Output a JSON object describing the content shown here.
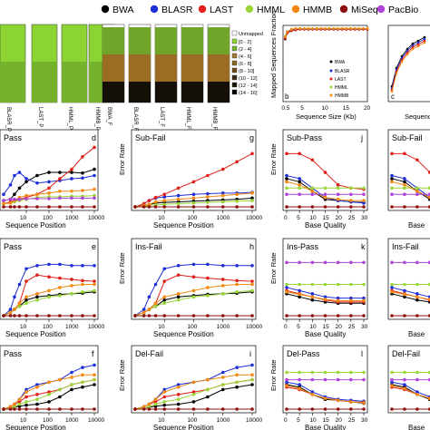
{
  "legend": {
    "items": [
      {
        "name": "BWA",
        "color": "#000000"
      },
      {
        "name": "BLASR",
        "color": "#1f2fd6"
      },
      {
        "name": "LAST",
        "color": "#e0201a"
      },
      {
        "name": "HMML",
        "color": "#9ad53a"
      },
      {
        "name": "HMMB",
        "color": "#f08a12"
      },
      {
        "name": "MiSeq",
        "color": "#8a1010"
      },
      {
        "name": "PacBio",
        "color": "#b044d8"
      }
    ]
  },
  "strip_legend": {
    "labels": [
      "Unmapped",
      "[0 - 2]",
      "(2 - 4]",
      "(4 - 6]",
      "(6 - 8]",
      "(8 - 10]",
      "(10 - 12]",
      "(12 - 14]",
      "(14 - 16]"
    ],
    "colors": [
      "#ffffff",
      "#8cd433",
      "#75b528",
      "#a0782e",
      "#8a6422",
      "#6a4a18",
      "#3a2a10",
      "#1a1208",
      "#000000"
    ]
  },
  "bar_labels": {
    "group1": [
      "BLASR_P",
      "LAST_P",
      "HMML_P",
      "HMMB_P"
    ],
    "group2": [
      "BWA_F",
      "BLASR_F",
      "LAST_F",
      "HMML_F",
      "HMMB_F"
    ]
  },
  "panel_b": {
    "letter": "b",
    "ylabel": "Mapped Sequences Fraction",
    "xlabel": "Sequence Size (Kb)",
    "xticks": [
      "0.5",
      "5",
      "10",
      "15",
      "20"
    ],
    "legend": [
      "BWA",
      "BLASR",
      "LAST",
      "HMML",
      "HMMB"
    ]
  },
  "panel_c": {
    "letter": "c",
    "xlabel": "Sequence"
  },
  "titles": {
    "d": "Pass",
    "g": "Sub-Fail",
    "j": "Sub-Pass",
    "m": "Sub-Fail",
    "e": "Pass",
    "h": "Ins-Fail",
    "k": "Ins-Pass",
    "n": "Ins-Fail",
    "f": "Pass",
    "i": "Del-Fail",
    "l": "Del-Pass",
    "o": "Del-Fail"
  },
  "letters": [
    "d",
    "e",
    "f",
    "g",
    "h",
    "i",
    "j",
    "k",
    "l"
  ],
  "axis_text": {
    "error_rate": "Error Rate",
    "seq_pos": "Sequence Position",
    "base_quality": "Base Quality",
    "base_q_short": "Base",
    "pos_ticks": [
      "10",
      "100",
      "1000",
      "10000"
    ],
    "pos_ticks_left": [
      "10",
      "100",
      "1000",
      "10000"
    ],
    "bq_ticks": [
      "0",
      "5",
      "10",
      "15",
      "20",
      "25",
      "30"
    ]
  },
  "chart_data": [
    {
      "type": "line",
      "panel": "b",
      "x": [
        0.5,
        1,
        2,
        3,
        4,
        5,
        6,
        7,
        8,
        9,
        10,
        11,
        12,
        13,
        14,
        15,
        16,
        17,
        18,
        19,
        20
      ],
      "series": [
        {
          "name": "BWA",
          "values": [
            0.82,
            0.9,
            0.93,
            0.94,
            0.95,
            0.95,
            0.95,
            0.95,
            0.95,
            0.95,
            0.95,
            0.95,
            0.95,
            0.95,
            0.95,
            0.95,
            0.95,
            0.95,
            0.95,
            0.95,
            0.95
          ]
        },
        {
          "name": "BLASR",
          "values": [
            0.84,
            0.91,
            0.94,
            0.95,
            0.95,
            0.95,
            0.95,
            0.95,
            0.95,
            0.95,
            0.95,
            0.95,
            0.95,
            0.95,
            0.95,
            0.95,
            0.95,
            0.95,
            0.95,
            0.95,
            0.95
          ]
        },
        {
          "name": "LAST",
          "values": [
            0.83,
            0.9,
            0.93,
            0.94,
            0.95,
            0.95,
            0.95,
            0.95,
            0.95,
            0.95,
            0.95,
            0.95,
            0.95,
            0.95,
            0.95,
            0.95,
            0.95,
            0.95,
            0.95,
            0.95,
            0.95
          ]
        },
        {
          "name": "HMML",
          "values": [
            0.86,
            0.92,
            0.95,
            0.96,
            0.96,
            0.96,
            0.96,
            0.96,
            0.96,
            0.96,
            0.96,
            0.96,
            0.96,
            0.96,
            0.96,
            0.96,
            0.96,
            0.96,
            0.96,
            0.96,
            0.96
          ]
        },
        {
          "name": "HMMB",
          "values": [
            0.85,
            0.92,
            0.95,
            0.96,
            0.96,
            0.96,
            0.96,
            0.96,
            0.96,
            0.96,
            0.96,
            0.96,
            0.96,
            0.96,
            0.96,
            0.96,
            0.96,
            0.96,
            0.96,
            0.96,
            0.96
          ]
        }
      ]
    },
    {
      "type": "line",
      "panel": "d",
      "x": [
        1,
        2,
        3,
        5,
        10,
        30,
        100,
        300,
        1000,
        3000,
        10000
      ],
      "series": [
        {
          "name": "BWA",
          "values": [
            0.1,
            0.12,
            0.2,
            0.3,
            0.4,
            0.5,
            0.55,
            0.55,
            0.55,
            0.54,
            0.6
          ]
        },
        {
          "name": "BLASR",
          "values": [
            0.2,
            0.35,
            0.5,
            0.55,
            0.45,
            0.38,
            0.4,
            0.42,
            0.45,
            0.46,
            0.5
          ]
        },
        {
          "name": "LAST",
          "values": [
            0.05,
            0.08,
            0.1,
            0.12,
            0.15,
            0.2,
            0.3,
            0.45,
            0.6,
            0.8,
            0.95
          ]
        },
        {
          "name": "HMML",
          "values": [
            0.05,
            0.06,
            0.08,
            0.1,
            0.12,
            0.15,
            0.16,
            0.16,
            0.17,
            0.17,
            0.18
          ]
        },
        {
          "name": "HMMB",
          "values": [
            0.05,
            0.06,
            0.1,
            0.15,
            0.18,
            0.2,
            0.22,
            0.25,
            0.25,
            0.26,
            0.28
          ]
        },
        {
          "name": "MiSeq",
          "values": [
            0,
            0,
            0,
            0,
            0,
            0,
            0,
            0,
            0,
            0,
            0
          ]
        },
        {
          "name": "PacBio",
          "values": [
            0.1,
            0.12,
            0.12,
            0.12,
            0.13,
            0.13,
            0.13,
            0.14,
            0.14,
            0.14,
            0.14
          ]
        }
      ]
    },
    {
      "type": "line",
      "panel": "g",
      "x": [
        1,
        2,
        3,
        5,
        10,
        30,
        100,
        300,
        1000,
        3000,
        10000
      ],
      "series": [
        {
          "name": "BWA",
          "values": [
            0,
            0.02,
            0.04,
            0.06,
            0.07,
            0.08,
            0.09,
            0.1,
            0.11,
            0.12,
            0.14
          ]
        },
        {
          "name": "BLASR",
          "values": [
            0,
            0.05,
            0.1,
            0.14,
            0.16,
            0.18,
            0.2,
            0.21,
            0.22,
            0.22,
            0.23
          ]
        },
        {
          "name": "LAST",
          "values": [
            0,
            0.05,
            0.1,
            0.15,
            0.2,
            0.3,
            0.4,
            0.5,
            0.6,
            0.72,
            0.85
          ]
        },
        {
          "name": "HMML",
          "values": [
            0,
            0.01,
            0.02,
            0.03,
            0.04,
            0.05,
            0.06,
            0.07,
            0.08,
            0.09,
            0.1
          ]
        },
        {
          "name": "HMMB",
          "values": [
            0,
            0.02,
            0.04,
            0.08,
            0.1,
            0.12,
            0.14,
            0.16,
            0.18,
            0.2,
            0.22
          ]
        },
        {
          "name": "MiSeq",
          "values": [
            0,
            0,
            0,
            0,
            0,
            0,
            0,
            0,
            0,
            0,
            0
          ]
        }
      ]
    },
    {
      "type": "line",
      "panel": "j",
      "x": [
        0,
        5,
        10,
        15,
        20,
        25,
        30
      ],
      "series": [
        {
          "name": "BWA",
          "values": [
            0.45,
            0.4,
            0.25,
            0.12,
            0.1,
            0.08,
            0.07
          ]
        },
        {
          "name": "BLASR",
          "values": [
            0.5,
            0.45,
            0.3,
            0.15,
            0.1,
            0.08,
            0.06
          ]
        },
        {
          "name": "LAST",
          "values": [
            0.85,
            0.85,
            0.75,
            0.55,
            0.35,
            0.3,
            0.28
          ]
        },
        {
          "name": "HMML",
          "values": [
            0.3,
            0.3,
            0.3,
            0.3,
            0.3,
            0.3,
            0.3
          ]
        },
        {
          "name": "HMMB",
          "values": [
            0.4,
            0.35,
            0.25,
            0.15,
            0.12,
            0.1,
            0.1
          ]
        },
        {
          "name": "MiSeq",
          "values": [
            0,
            0,
            0,
            0,
            0,
            0,
            0
          ]
        },
        {
          "name": "PacBio",
          "values": [
            0.2,
            0.2,
            0.2,
            0.2,
            0.2,
            0.2,
            0.2
          ]
        }
      ]
    },
    {
      "type": "line",
      "panel": "h",
      "x": [
        1,
        2,
        3,
        5,
        10,
        30,
        100,
        300,
        1000,
        3000,
        10000
      ],
      "series": [
        {
          "name": "BWA",
          "values": [
            0,
            0.05,
            0.1,
            0.15,
            0.25,
            0.3,
            0.32,
            0.34,
            0.35,
            0.36,
            0.38
          ]
        },
        {
          "name": "BLASR",
          "values": [
            0,
            0.1,
            0.3,
            0.5,
            0.75,
            0.8,
            0.82,
            0.82,
            0.8,
            0.8,
            0.8
          ]
        },
        {
          "name": "LAST",
          "values": [
            0,
            0.05,
            0.1,
            0.2,
            0.55,
            0.65,
            0.62,
            0.6,
            0.58,
            0.56,
            0.55
          ]
        },
        {
          "name": "HMML",
          "values": [
            0,
            0.05,
            0.1,
            0.15,
            0.2,
            0.25,
            0.3,
            0.32,
            0.35,
            0.38,
            0.4
          ]
        },
        {
          "name": "HMMB",
          "values": [
            0,
            0.05,
            0.1,
            0.2,
            0.3,
            0.35,
            0.4,
            0.45,
            0.48,
            0.5,
            0.5
          ]
        },
        {
          "name": "MiSeq",
          "values": [
            0,
            0,
            0,
            0,
            0,
            0,
            0,
            0,
            0,
            0,
            0
          ]
        }
      ]
    },
    {
      "type": "line",
      "panel": "k",
      "x": [
        0,
        5,
        10,
        15,
        20,
        25,
        30
      ],
      "series": [
        {
          "name": "BWA",
          "values": [
            0.35,
            0.3,
            0.25,
            0.22,
            0.2,
            0.2,
            0.2
          ]
        },
        {
          "name": "BLASR",
          "values": [
            0.45,
            0.4,
            0.35,
            0.3,
            0.28,
            0.28,
            0.28
          ]
        },
        {
          "name": "LAST",
          "values": [
            0.4,
            0.35,
            0.3,
            0.25,
            0.22,
            0.22,
            0.22
          ]
        },
        {
          "name": "HMML",
          "values": [
            0.5,
            0.5,
            0.5,
            0.5,
            0.5,
            0.5,
            0.5
          ]
        },
        {
          "name": "HMMB",
          "values": [
            0.38,
            0.34,
            0.3,
            0.26,
            0.24,
            0.24,
            0.24
          ]
        },
        {
          "name": "MiSeq",
          "values": [
            0,
            0,
            0,
            0,
            0,
            0,
            0
          ]
        },
        {
          "name": "PacBio",
          "values": [
            0.85,
            0.85,
            0.85,
            0.85,
            0.85,
            0.85,
            0.85
          ]
        }
      ]
    },
    {
      "type": "line",
      "panel": "i",
      "x": [
        1,
        2,
        3,
        5,
        10,
        30,
        100,
        300,
        1000,
        3000,
        10000
      ],
      "series": [
        {
          "name": "BWA",
          "values": [
            0,
            0.02,
            0.04,
            0.06,
            0.08,
            0.1,
            0.15,
            0.25,
            0.4,
            0.45,
            0.5
          ]
        },
        {
          "name": "BLASR",
          "values": [
            0,
            0.05,
            0.1,
            0.2,
            0.4,
            0.5,
            0.55,
            0.6,
            0.75,
            0.85,
            0.9
          ]
        },
        {
          "name": "LAST",
          "values": [
            0,
            0.05,
            0.1,
            0.15,
            0.25,
            0.3,
            0.35,
            0.4,
            0.5,
            0.55,
            0.6
          ]
        },
        {
          "name": "HMML",
          "values": [
            0,
            0.02,
            0.05,
            0.1,
            0.15,
            0.2,
            0.3,
            0.4,
            0.5,
            0.55,
            0.6
          ]
        },
        {
          "name": "HMMB",
          "values": [
            0,
            0.05,
            0.1,
            0.2,
            0.35,
            0.45,
            0.55,
            0.6,
            0.65,
            0.7,
            0.7
          ]
        },
        {
          "name": "MiSeq",
          "values": [
            0,
            0,
            0,
            0,
            0,
            0,
            0,
            0,
            0,
            0,
            0
          ]
        }
      ]
    },
    {
      "type": "line",
      "panel": "l",
      "x": [
        0,
        5,
        10,
        15,
        20,
        25,
        30
      ],
      "series": [
        {
          "name": "BWA",
          "values": [
            0.5,
            0.45,
            0.3,
            0.2,
            0.18,
            0.15,
            0.12
          ]
        },
        {
          "name": "BLASR",
          "values": [
            0.55,
            0.5,
            0.35,
            0.25,
            0.2,
            0.18,
            0.16
          ]
        },
        {
          "name": "LAST",
          "values": [
            0.45,
            0.4,
            0.3,
            0.22,
            0.18,
            0.15,
            0.14
          ]
        },
        {
          "name": "HMML",
          "values": [
            0.75,
            0.75,
            0.75,
            0.75,
            0.75,
            0.75,
            0.75
          ]
        },
        {
          "name": "HMMB",
          "values": [
            0.48,
            0.42,
            0.3,
            0.22,
            0.18,
            0.15,
            0.13
          ]
        },
        {
          "name": "MiSeq",
          "values": [
            0,
            0,
            0,
            0,
            0,
            0,
            0
          ]
        },
        {
          "name": "PacBio",
          "values": [
            0.6,
            0.6,
            0.6,
            0.6,
            0.6,
            0.6,
            0.6
          ]
        }
      ]
    }
  ]
}
